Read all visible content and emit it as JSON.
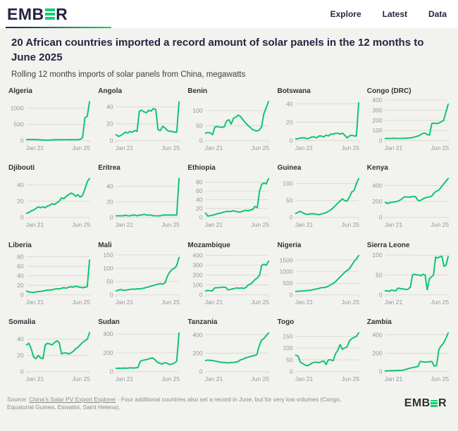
{
  "header": {
    "logo_prefix": "EMB",
    "logo_suffix": "R",
    "nav": [
      "Explore",
      "Latest",
      "Data"
    ]
  },
  "title": "20 African countries imported a record amount of solar panels in the 12 months to June 2025",
  "subtitle": "Rolling 12 months imports of solar panels from China, megawatts",
  "footer": {
    "source_prefix": "Source: ",
    "source_link": "China’s Solar PV Export Explorer",
    "source_suffix": " · Four additional countries also set a record in June, but for very low volumes (Congo, Equatorial Guinea, Eswatini, Saint Helena).",
    "logo_prefix": "EMB",
    "logo_suffix": "R"
  },
  "colors": {
    "line": "#0cc46e",
    "grid": "#d8d8d3",
    "tick": "#95979a",
    "navy": "#232541",
    "green": "#17cd73",
    "card_bg": "#f2f2ef",
    "text_dark": "#303236",
    "footer_text": "#8b8d89"
  },
  "chart_data": [
    {
      "type": "line",
      "title": "Algeria",
      "x_start": "Jan 21",
      "x_end": "Jun 25",
      "yticks": [
        0,
        500,
        1000
      ],
      "ymax": 1250,
      "values": [
        30,
        35,
        32,
        35,
        30,
        28,
        22,
        20,
        15,
        15,
        18,
        22,
        28,
        30,
        30,
        28,
        26,
        28,
        30,
        32,
        30,
        28,
        30,
        40,
        90,
        700,
        750,
        1200
      ]
    },
    {
      "type": "line",
      "title": "Angola",
      "x_start": "Jan 21",
      "x_end": "Jun 25",
      "yticks": [
        0,
        20,
        40
      ],
      "ymax": 48,
      "values": [
        7,
        5,
        6,
        8,
        10,
        9,
        11,
        10,
        12,
        11,
        35,
        36,
        34,
        33,
        36,
        35,
        38,
        37,
        13,
        12,
        17,
        15,
        12,
        11,
        11,
        10,
        10,
        46
      ]
    },
    {
      "type": "line",
      "title": "Benin",
      "x_start": "Jan 21",
      "x_end": "Jun 25",
      "yticks": [
        0,
        50,
        100
      ],
      "ymax": 135,
      "values": [
        25,
        27,
        26,
        20,
        45,
        47,
        45,
        44,
        46,
        65,
        70,
        55,
        75,
        78,
        85,
        80,
        70,
        60,
        52,
        45,
        38,
        34,
        32,
        35,
        45,
        90,
        110,
        130
      ]
    },
    {
      "type": "line",
      "title": "Botswana",
      "x_start": "Jan 21",
      "x_end": "Jun 25",
      "yticks": [
        0,
        20,
        40
      ],
      "ymax": 44,
      "values": [
        2,
        2,
        3,
        3,
        3,
        2,
        3,
        4,
        4,
        3,
        5,
        5,
        4,
        6,
        5,
        7,
        7,
        8,
        8,
        7,
        8,
        6,
        3,
        5,
        6,
        5,
        5,
        41
      ]
    },
    {
      "type": "line",
      "title": "Congo (DRC)",
      "x_start": "Jan 21",
      "x_end": "Jun 25",
      "yticks": [
        0,
        100,
        200,
        300,
        400
      ],
      "ymax": 400,
      "values": [
        20,
        22,
        21,
        22,
        23,
        22,
        21,
        22,
        24,
        23,
        25,
        28,
        32,
        38,
        45,
        55,
        70,
        75,
        60,
        55,
        170,
        172,
        168,
        175,
        185,
        200,
        280,
        360
      ]
    },
    {
      "type": "line",
      "title": "Djibouti",
      "x_start": "Jan 21",
      "x_end": "Jun 25",
      "yticks": [
        0,
        20,
        40
      ],
      "ymax": 50,
      "values": [
        5,
        6,
        8,
        9,
        11,
        13,
        12,
        13,
        12,
        14,
        15,
        17,
        16,
        18,
        20,
        24,
        23,
        26,
        28,
        30,
        29,
        26,
        28,
        25,
        27,
        35,
        44,
        48
      ]
    },
    {
      "type": "line",
      "title": "Eritrea",
      "x_start": "Jan 21",
      "x_end": "Jun 25",
      "yticks": [
        0,
        20,
        40
      ],
      "ymax": 52,
      "values": [
        2,
        2,
        2,
        2,
        3,
        2,
        2,
        3,
        3,
        2,
        3,
        3,
        4,
        3,
        3,
        3,
        2,
        2,
        2,
        2,
        3,
        3,
        3,
        3,
        3,
        3,
        3,
        50
      ]
    },
    {
      "type": "line",
      "title": "Ethiopia",
      "x_start": "Jan 21",
      "x_end": "Jun 25",
      "yticks": [
        0,
        20,
        40,
        60,
        80
      ],
      "ymax": 92,
      "values": [
        10,
        3,
        4,
        5,
        6,
        8,
        9,
        10,
        12,
        13,
        14,
        13,
        15,
        14,
        13,
        12,
        13,
        15,
        16,
        15,
        17,
        18,
        25,
        22,
        60,
        75,
        78,
        76,
        88
      ]
    },
    {
      "type": "line",
      "title": "Guinea",
      "x_start": "Jan 21",
      "x_end": "Jun 25",
      "yticks": [
        0,
        50,
        100
      ],
      "ymax": 120,
      "values": [
        12,
        15,
        18,
        14,
        10,
        9,
        10,
        11,
        10,
        9,
        8,
        10,
        12,
        14,
        18,
        22,
        28,
        35,
        42,
        48,
        55,
        50,
        48,
        60,
        75,
        80,
        100,
        115
      ]
    },
    {
      "type": "line",
      "title": "Kenya",
      "x_start": "Jan 21",
      "x_end": "Jun 25",
      "yticks": [
        0,
        200,
        400
      ],
      "ymax": 510,
      "values": [
        190,
        175,
        185,
        190,
        195,
        200,
        210,
        230,
        255,
        260,
        255,
        258,
        262,
        260,
        215,
        210,
        230,
        245,
        252,
        258,
        270,
        310,
        330,
        345,
        380,
        420,
        455,
        490
      ]
    },
    {
      "type": "line",
      "title": "Liberia",
      "x_start": "Jan 21",
      "x_end": "Jun 25",
      "yticks": [
        0,
        20,
        40,
        60,
        80
      ],
      "ymax": 85,
      "values": [
        8,
        6,
        5,
        5,
        6,
        7,
        7,
        8,
        9,
        10,
        10,
        11,
        12,
        13,
        12,
        14,
        15,
        14,
        16,
        17,
        16,
        18,
        17,
        16,
        15,
        16,
        17,
        73
      ]
    },
    {
      "type": "line",
      "title": "Mali",
      "x_start": "Jan 21",
      "x_end": "Jun 25",
      "yticks": [
        0,
        50,
        100,
        150
      ],
      "ymax": 152,
      "values": [
        15,
        18,
        20,
        18,
        17,
        19,
        20,
        22,
        21,
        23,
        22,
        24,
        25,
        28,
        30,
        33,
        35,
        38,
        40,
        42,
        40,
        45,
        70,
        85,
        95,
        100,
        110,
        140
      ]
    },
    {
      "type": "line",
      "title": "Mozambique",
      "x_start": "Jan 21",
      "x_end": "Jun 25",
      "yticks": [
        0,
        100,
        200,
        300,
        400
      ],
      "ymax": 410,
      "values": [
        40,
        45,
        42,
        40,
        70,
        72,
        74,
        75,
        78,
        75,
        50,
        55,
        60,
        65,
        70,
        66,
        70,
        65,
        75,
        100,
        110,
        130,
        155,
        170,
        200,
        300,
        310,
        300,
        340
      ]
    },
    {
      "type": "line",
      "title": "Nigeria",
      "x_start": "Jan 21",
      "x_end": "Jun 25",
      "yticks": [
        0,
        500,
        1000,
        1500
      ],
      "ymax": 1750,
      "values": [
        150,
        155,
        160,
        168,
        175,
        185,
        195,
        210,
        230,
        250,
        270,
        300,
        320,
        315,
        355,
        400,
        455,
        520,
        600,
        700,
        800,
        900,
        1000,
        1060,
        1150,
        1300,
        1450,
        1560,
        1700
      ]
    },
    {
      "type": "line",
      "title": "Sierra Leone",
      "x_start": "Jan 21",
      "x_end": "Jun 25",
      "yticks": [
        0,
        50,
        100
      ],
      "ymax": 102,
      "values": [
        10,
        10,
        9,
        12,
        11,
        10,
        17,
        16,
        15,
        15,
        13,
        15,
        20,
        50,
        52,
        50,
        50,
        48,
        52,
        50,
        13,
        40,
        45,
        50,
        95,
        93,
        96,
        97,
        72,
        75,
        97
      ]
    },
    {
      "type": "line",
      "title": "Somalia",
      "x_start": "Jan 21",
      "x_end": "Jun 25",
      "yticks": [
        0,
        20,
        40
      ],
      "ymax": 50,
      "values": [
        33,
        35,
        28,
        18,
        16,
        20,
        17,
        16,
        33,
        35,
        34,
        33,
        36,
        38,
        36,
        22,
        23,
        23,
        22,
        23,
        25,
        28,
        30,
        33,
        36,
        38,
        40,
        48
      ]
    },
    {
      "type": "line",
      "title": "Sudan",
      "x_start": "Jan 21",
      "x_end": "Jun 25",
      "yticks": [
        0,
        200,
        400
      ],
      "ymax": 430,
      "values": [
        35,
        36,
        35,
        38,
        36,
        38,
        40,
        38,
        40,
        42,
        110,
        120,
        125,
        130,
        140,
        145,
        130,
        100,
        90,
        80,
        95,
        90,
        75,
        80,
        90,
        110,
        410
      ]
    },
    {
      "type": "line",
      "title": "Tanzania",
      "x_start": "Jan 21",
      "x_end": "Jun 25",
      "yticks": [
        0,
        200,
        400
      ],
      "ymax": 440,
      "values": [
        120,
        125,
        122,
        120,
        115,
        110,
        105,
        100,
        100,
        96,
        95,
        98,
        100,
        104,
        110,
        128,
        135,
        148,
        155,
        163,
        170,
        175,
        185,
        280,
        340,
        360,
        390,
        420
      ]
    },
    {
      "type": "line",
      "title": "Togo",
      "x_start": "Jan 21",
      "x_end": "Jun 25",
      "yticks": [
        0,
        50,
        100,
        150
      ],
      "ymax": 172,
      "values": [
        70,
        66,
        40,
        34,
        28,
        25,
        30,
        36,
        40,
        40,
        38,
        42,
        45,
        30,
        50,
        50,
        46,
        75,
        90,
        115,
        95,
        100,
        105,
        130,
        140,
        145,
        150,
        165
      ]
    },
    {
      "type": "line",
      "title": "Zambia",
      "x_start": "Jan 21",
      "x_end": "Jun 25",
      "yticks": [
        0,
        200,
        400
      ],
      "ymax": 440,
      "values": [
        8,
        9,
        10,
        10,
        11,
        12,
        12,
        14,
        18,
        25,
        32,
        40,
        45,
        50,
        55,
        110,
        108,
        102,
        105,
        108,
        110,
        60,
        65,
        240,
        280,
        310,
        360,
        420
      ]
    }
  ]
}
